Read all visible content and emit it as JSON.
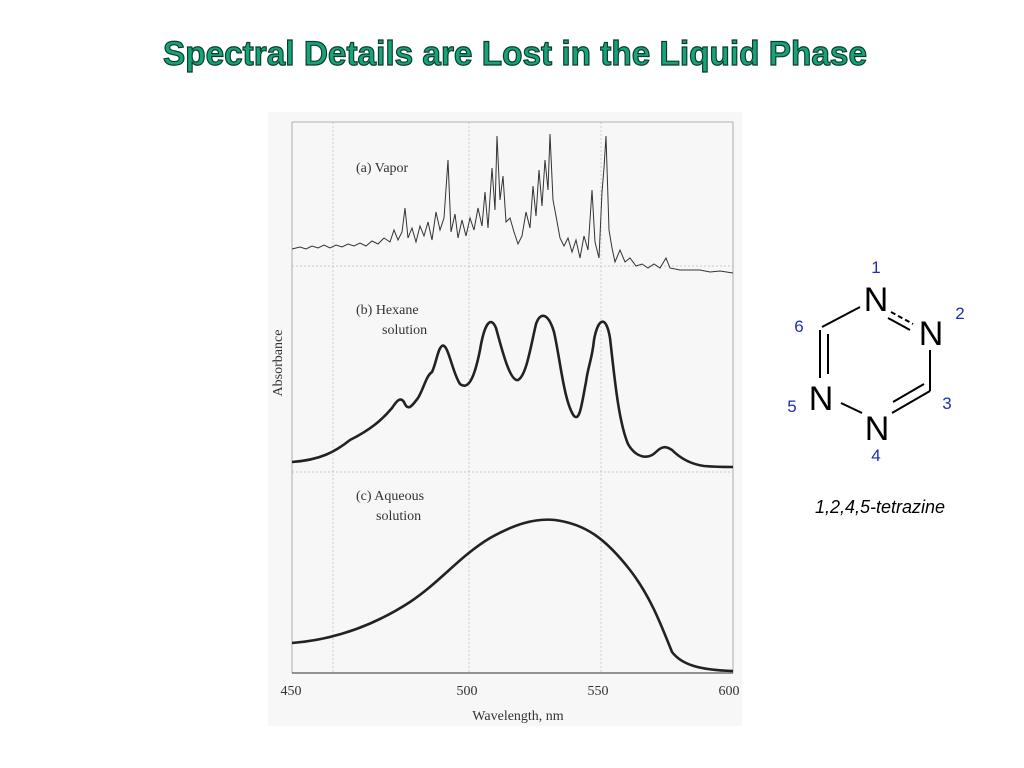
{
  "title": "Spectral Details are Lost in the Liquid Phase",
  "figure": {
    "panels": [
      {
        "lines": [
          "(a) Vapor"
        ]
      },
      {
        "lines": [
          "(b) Hexane",
          "solution"
        ]
      },
      {
        "lines": [
          "(c) Aqueous",
          "solution"
        ]
      }
    ],
    "y_axis_label": "Absorbance",
    "x_axis_label": "Wavelength, nm",
    "x_ticks": [
      "450",
      "500",
      "550",
      "600"
    ]
  },
  "molecule": {
    "atom_labels": [
      "N",
      "N",
      "N",
      "N"
    ],
    "positions": [
      "1",
      "2",
      "3",
      "4",
      "5",
      "6"
    ],
    "name": "1,2,4,5-tetrazine"
  }
}
